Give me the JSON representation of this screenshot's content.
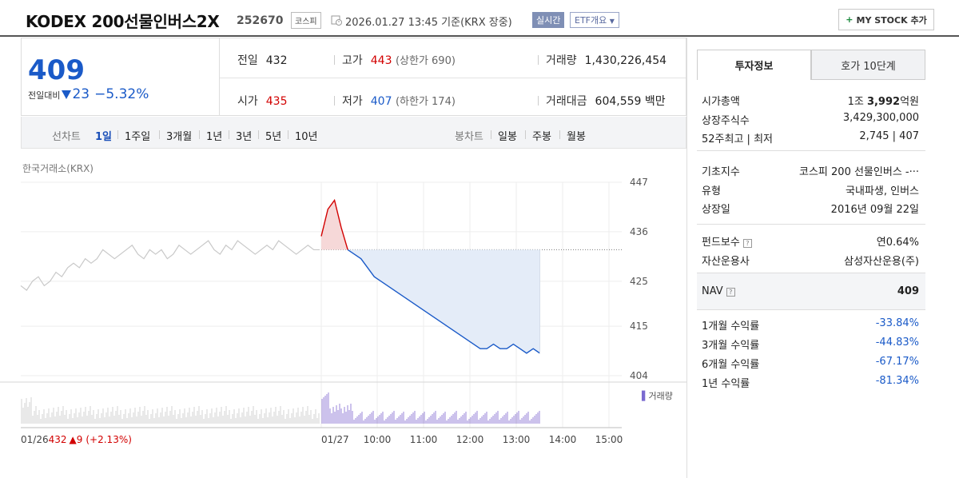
{
  "header": {
    "title": "KODEX 200선물인버스2X",
    "code": "252670",
    "market": "코스피",
    "datetime": "2026.01.27 13:45  기준(KRX 장중)",
    "realtime": "실시간",
    "etf_overview": "ETF개요",
    "mystock_label": "MY STOCK 추가"
  },
  "price": {
    "current": "409",
    "change_label": "전일대비",
    "change": "23",
    "change_pct": "−5.32%"
  },
  "stats": {
    "prev_close_label": "전일",
    "prev_close": "432",
    "high_label": "고가",
    "high": "443",
    "upper_limit": "(상한가 690)",
    "volume_label": "거래량",
    "volume": "1,430,226,454",
    "open_label": "시가",
    "open": "435",
    "low_label": "저가",
    "low": "407",
    "lower_limit": "(하한가 174)",
    "value_label": "거래대금",
    "value": "604,559 백만"
  },
  "tabs": {
    "line_label": "선차트",
    "line_periods": [
      "1일",
      "1주일",
      "3개월",
      "1년",
      "3년",
      "5년",
      "10년"
    ],
    "candle_label": "봉차트",
    "candle_periods": [
      "일봉",
      "주봉",
      "월봉"
    ]
  },
  "chart_data": {
    "type": "line",
    "title": "",
    "source": "한국거래소(KRX)",
    "y_ticks": [
      "447",
      "436",
      "425",
      "415",
      "404"
    ],
    "ylim": [
      404,
      447
    ],
    "prev_close": 432,
    "x_ticks": [
      "01/27",
      "10:00",
      "11:00",
      "12:00",
      "13:00",
      "14:00",
      "15:00"
    ],
    "prev_day_label": "01/26",
    "prev_day_close": "432",
    "prev_day_change": "▲9",
    "prev_day_change_pct": "(+2.13%)",
    "volume_legend": "거래량",
    "series": [
      {
        "name": "01/26",
        "x_start": "09:00",
        "x_end": "15:30",
        "values": [
          424,
          423,
          425,
          426,
          424,
          425,
          427,
          426,
          428,
          429,
          428,
          430,
          429,
          430,
          432,
          431,
          430,
          431,
          432,
          433,
          431,
          430,
          432,
          431,
          432,
          430,
          431,
          433,
          432,
          431,
          432,
          433,
          434,
          432,
          431,
          433,
          432,
          434,
          433,
          432,
          431,
          432,
          433,
          432,
          434,
          433,
          432,
          431,
          432,
          433,
          432,
          432
        ]
      },
      {
        "name": "01/27",
        "x_start": "09:00",
        "x_end": "13:45",
        "values": [
          435,
          441,
          443,
          437,
          432,
          431,
          430,
          428,
          426,
          425,
          424,
          423,
          422,
          421,
          420,
          419,
          418,
          417,
          416,
          415,
          414,
          413,
          412,
          411,
          410,
          410,
          411,
          410,
          410,
          411,
          410,
          409,
          410,
          409
        ]
      }
    ]
  },
  "info": {
    "tab_active": "투자정보",
    "tab_inactive": "호가 10단계",
    "market_cap_label": "시가총액",
    "market_cap_num1": "1조 ",
    "market_cap_num2": "3,992",
    "market_cap_unit": "억원",
    "shares_label": "상장주식수",
    "shares": "3,429,300,000",
    "w52_label": "52주최고 | 최저",
    "w52": "2,745 | 407",
    "index_label": "기초지수",
    "index": "코스피 200 선물인버스 -···",
    "type_label": "유형",
    "type": "국내파생, 인버스",
    "listed_label": "상장일",
    "listed": "2016년 09월 22일",
    "fee_label": "펀드보수",
    "fee": "연0.64%",
    "manager_label": "자산운용사",
    "manager": "삼성자산운용(주)",
    "nav_label": "NAV",
    "nav": "409",
    "r1m_label": "1개월 수익률",
    "r1m": "-33.84%",
    "r3m_label": "3개월 수익률",
    "r3m": "-44.83%",
    "r6m_label": "6개월 수익률",
    "r6m": "-67.17%",
    "r1y_label": "1년 수익률",
    "r1y": "-81.34%",
    "colors": {
      "up": "#d20000",
      "down": "#1a5ac8",
      "fill": "#e4ecf8"
    }
  }
}
